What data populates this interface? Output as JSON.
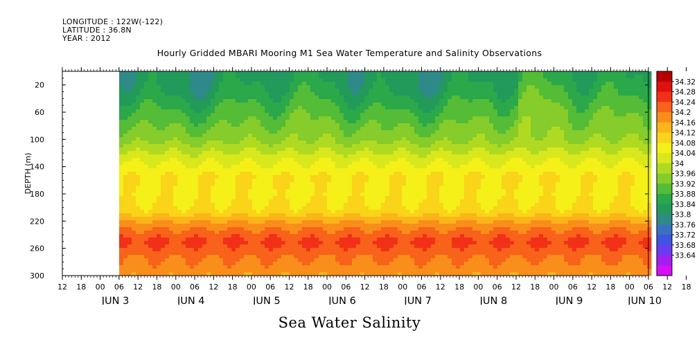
{
  "header": {
    "longitude": "LONGITUDE : 122W(-122)",
    "latitude": "LATITUDE : 36.8N",
    "year": "YEAR : 2012",
    "title": "Hourly Gridded MBARI Mooring M1 Sea Water Temperature and Salinity Observations"
  },
  "chart_data": {
    "type": "heatmap",
    "title": "Hourly Gridded MBARI Mooring M1 Sea Water Temperature and Salinity Observations",
    "variable_label": "Sea Water Salinity",
    "ylabel": "DEPTH (m)",
    "ylim": [
      300,
      0
    ],
    "y_ticks": [
      20,
      60,
      100,
      140,
      180,
      220,
      260,
      300
    ],
    "x_hour_ticks": [
      "12",
      "18",
      "00",
      "06",
      "12",
      "18",
      "00",
      "06",
      "12",
      "18",
      "00",
      "06",
      "12",
      "18",
      "00",
      "06",
      "12",
      "18",
      "00",
      "06",
      "12",
      "18",
      "00",
      "06",
      "12",
      "18",
      "00",
      "06",
      "12",
      "18",
      "00",
      "06",
      "12",
      "18",
      "00",
      "06",
      "12"
    ],
    "x_day_labels": [
      "JUN  3",
      "JUN  4",
      "JUN  5",
      "JUN  6",
      "JUN  7",
      "JUN  8",
      "JUN  9",
      "JUN 10"
    ],
    "data_start_hour": 18,
    "colorbar": {
      "levels": [
        33.64,
        33.68,
        33.72,
        33.76,
        33.8,
        33.84,
        33.88,
        33.92,
        33.96,
        34,
        34.04,
        34.08,
        34.12,
        34.16,
        34.2,
        34.24,
        34.28,
        34.32
      ],
      "labels": [
        "34.32",
        "34.28",
        "34.24",
        "34.2",
        "34.16",
        "34.12",
        "34.08",
        "34.04",
        "34",
        "33.96",
        "33.92",
        "33.88",
        "33.84",
        "33.8",
        "33.76",
        "33.72",
        "33.68",
        "33.64"
      ],
      "colors": [
        "#d60ff5",
        "#a020f0",
        "#6a3cf0",
        "#3f54e0",
        "#3a70c0",
        "#2e8a88",
        "#229a5a",
        "#2aa84a",
        "#54bc36",
        "#86cc2a",
        "#b0da22",
        "#d8e81c",
        "#f4f018",
        "#f9d418",
        "#fbb41a",
        "#fa8e1a",
        "#f8621a",
        "#f23018",
        "#e01010",
        "#b40000"
      ]
    },
    "profile_depths": [
      10,
      30,
      60,
      100,
      130,
      155,
      180,
      205,
      225,
      250,
      275,
      300
    ],
    "mean_salinity_profile": [
      33.86,
      33.88,
      33.93,
      33.99,
      34.07,
      34.12,
      34.11,
      34.13,
      34.22,
      34.29,
      34.24,
      34.21
    ]
  },
  "colorbar_labels": [
    "34.32",
    "34.28",
    "34.24",
    "34.2",
    "34.16",
    "34.12",
    "34.08",
    "34.04",
    "34",
    "33.96",
    "33.92",
    "33.88",
    "33.84",
    "33.8",
    "33.76",
    "33.72",
    "33.68",
    "33.64"
  ],
  "variable_title": "Sea Water Salinity"
}
